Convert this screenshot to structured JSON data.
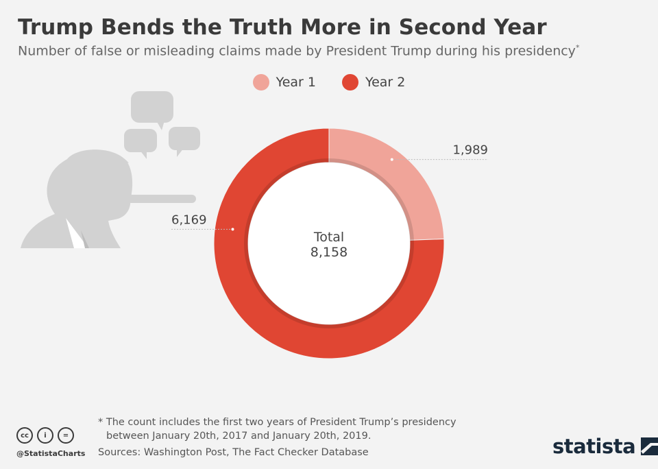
{
  "header": {
    "title": "Trump Bends the Truth More in Second Year",
    "subtitle": "Number of false or misleading claims made by President Trump during his presidency",
    "subtitle_marker": "*"
  },
  "chart_data": {
    "type": "pie",
    "style": "donut",
    "title": "Trump Bends the Truth More in Second Year",
    "categories": [
      "Year 1",
      "Year 2"
    ],
    "values": [
      1989,
      6169
    ],
    "value_labels": [
      "1,989",
      "6,169"
    ],
    "colors": [
      "#f0a499",
      "#e04633"
    ],
    "center_label": "Total",
    "center_value": "8,158",
    "legend_position": "top-center"
  },
  "legend": {
    "items": [
      {
        "label": "Year 1",
        "color": "#f0a499"
      },
      {
        "label": "Year 2",
        "color": "#e04633"
      }
    ]
  },
  "footer": {
    "footnote_line1": "* The count includes the first two years of President Trump’s presidency",
    "footnote_line2": "between January 20th, 2017 and January 20th, 2019.",
    "sources": "Sources: Washington Post, The Fact Checker Database",
    "handle": "@StatistaCharts",
    "brand": "statista",
    "cc_icons": [
      "cc-icon",
      "by-icon",
      "nd-icon"
    ],
    "cc_labels": [
      "cc",
      "i",
      "="
    ]
  },
  "illustration": {
    "icon": "long-nose-silhouette-icon"
  }
}
